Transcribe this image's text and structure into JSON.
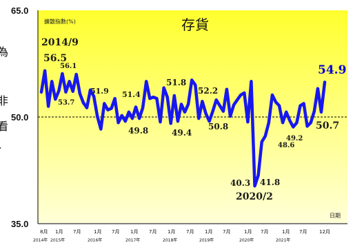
{
  "side_text": [
    "為",
    "非",
    "看",
    "、"
  ],
  "chart_data": {
    "type": "line",
    "title": "存貨",
    "ylabel": "擴散指數(%)",
    "xlabel": "日期",
    "ylim": [
      35.0,
      65.0
    ],
    "y_ticks": [
      "65.0",
      "50.0",
      "35.0"
    ],
    "reference_line": 50.0,
    "grid": false,
    "background": {
      "top": "#ffff2e",
      "bottom": "#ffffd8"
    },
    "colors": {
      "line": "#1717f0",
      "reference": "#000000"
    },
    "x_ticks": [
      "8月",
      "1月",
      "7月",
      "1月",
      "7月",
      "1月",
      "7月",
      "1月",
      "7月",
      "1月",
      "7月",
      "1月",
      "7月",
      "1月",
      "7月",
      "12月"
    ],
    "year_labels": [
      "2014年",
      "2015年",
      "2016年",
      "2017年",
      "2018年",
      "2019年",
      "2020年",
      "2021年"
    ],
    "series": [
      {
        "values": [
          53.5,
          56.5,
          51.5,
          55.0,
          52.5,
          53.7,
          56.1,
          53.5,
          55.0,
          53.6,
          56.0,
          53.3,
          52.0,
          51.3,
          53.8,
          52.9,
          50.1,
          48.3,
          51.9,
          51.0,
          51.2,
          52.6,
          49.2,
          50.2,
          49.4,
          50.7,
          49.8,
          51.4,
          49.8,
          51.3,
          55.0,
          52.6,
          52.8,
          52.6,
          49.3,
          54.1,
          52.8,
          49.1,
          53.0,
          49.4,
          51.8,
          50.7,
          51.8,
          55.2,
          54.5,
          49.8,
          52.2,
          50.5,
          49.4,
          50.8,
          52.4,
          51.6,
          50.8,
          53.9,
          50.1,
          51.7,
          52.4,
          53.1,
          53.4,
          49.3,
          55.0,
          40.3,
          41.8,
          46.5,
          47.3,
          49.2,
          53.1,
          52.1,
          51.6,
          49.2,
          50.7,
          49.5,
          48.6,
          49.2,
          51.6,
          51.9,
          48.7,
          49.2,
          50.8,
          54.0,
          50.7,
          54.9
        ]
      }
    ],
    "annotations": [
      {
        "text": "2014/9",
        "point": 1
      },
      {
        "text": "56.5",
        "point": 1
      },
      {
        "text": "56.1",
        "point": 6
      },
      {
        "text": "53.7",
        "point": 5
      },
      {
        "text": "51.9",
        "point": 18
      },
      {
        "text": "51.4",
        "point": 27
      },
      {
        "text": "49.8",
        "point": 26
      },
      {
        "text": "51.8",
        "point": 40
      },
      {
        "text": "49.4",
        "point": 39
      },
      {
        "text": "52.2",
        "point": 46
      },
      {
        "text": "50.8",
        "point": 49
      },
      {
        "text": "40.3",
        "point": 61
      },
      {
        "text": "2020/2",
        "point": 61
      },
      {
        "text": "41.8",
        "point": 62
      },
      {
        "text": "48.6",
        "point": 72
      },
      {
        "text": "49.2",
        "point": 73
      },
      {
        "text": "50.7",
        "point": 80
      },
      {
        "text": "54.9",
        "point": 81
      }
    ]
  }
}
